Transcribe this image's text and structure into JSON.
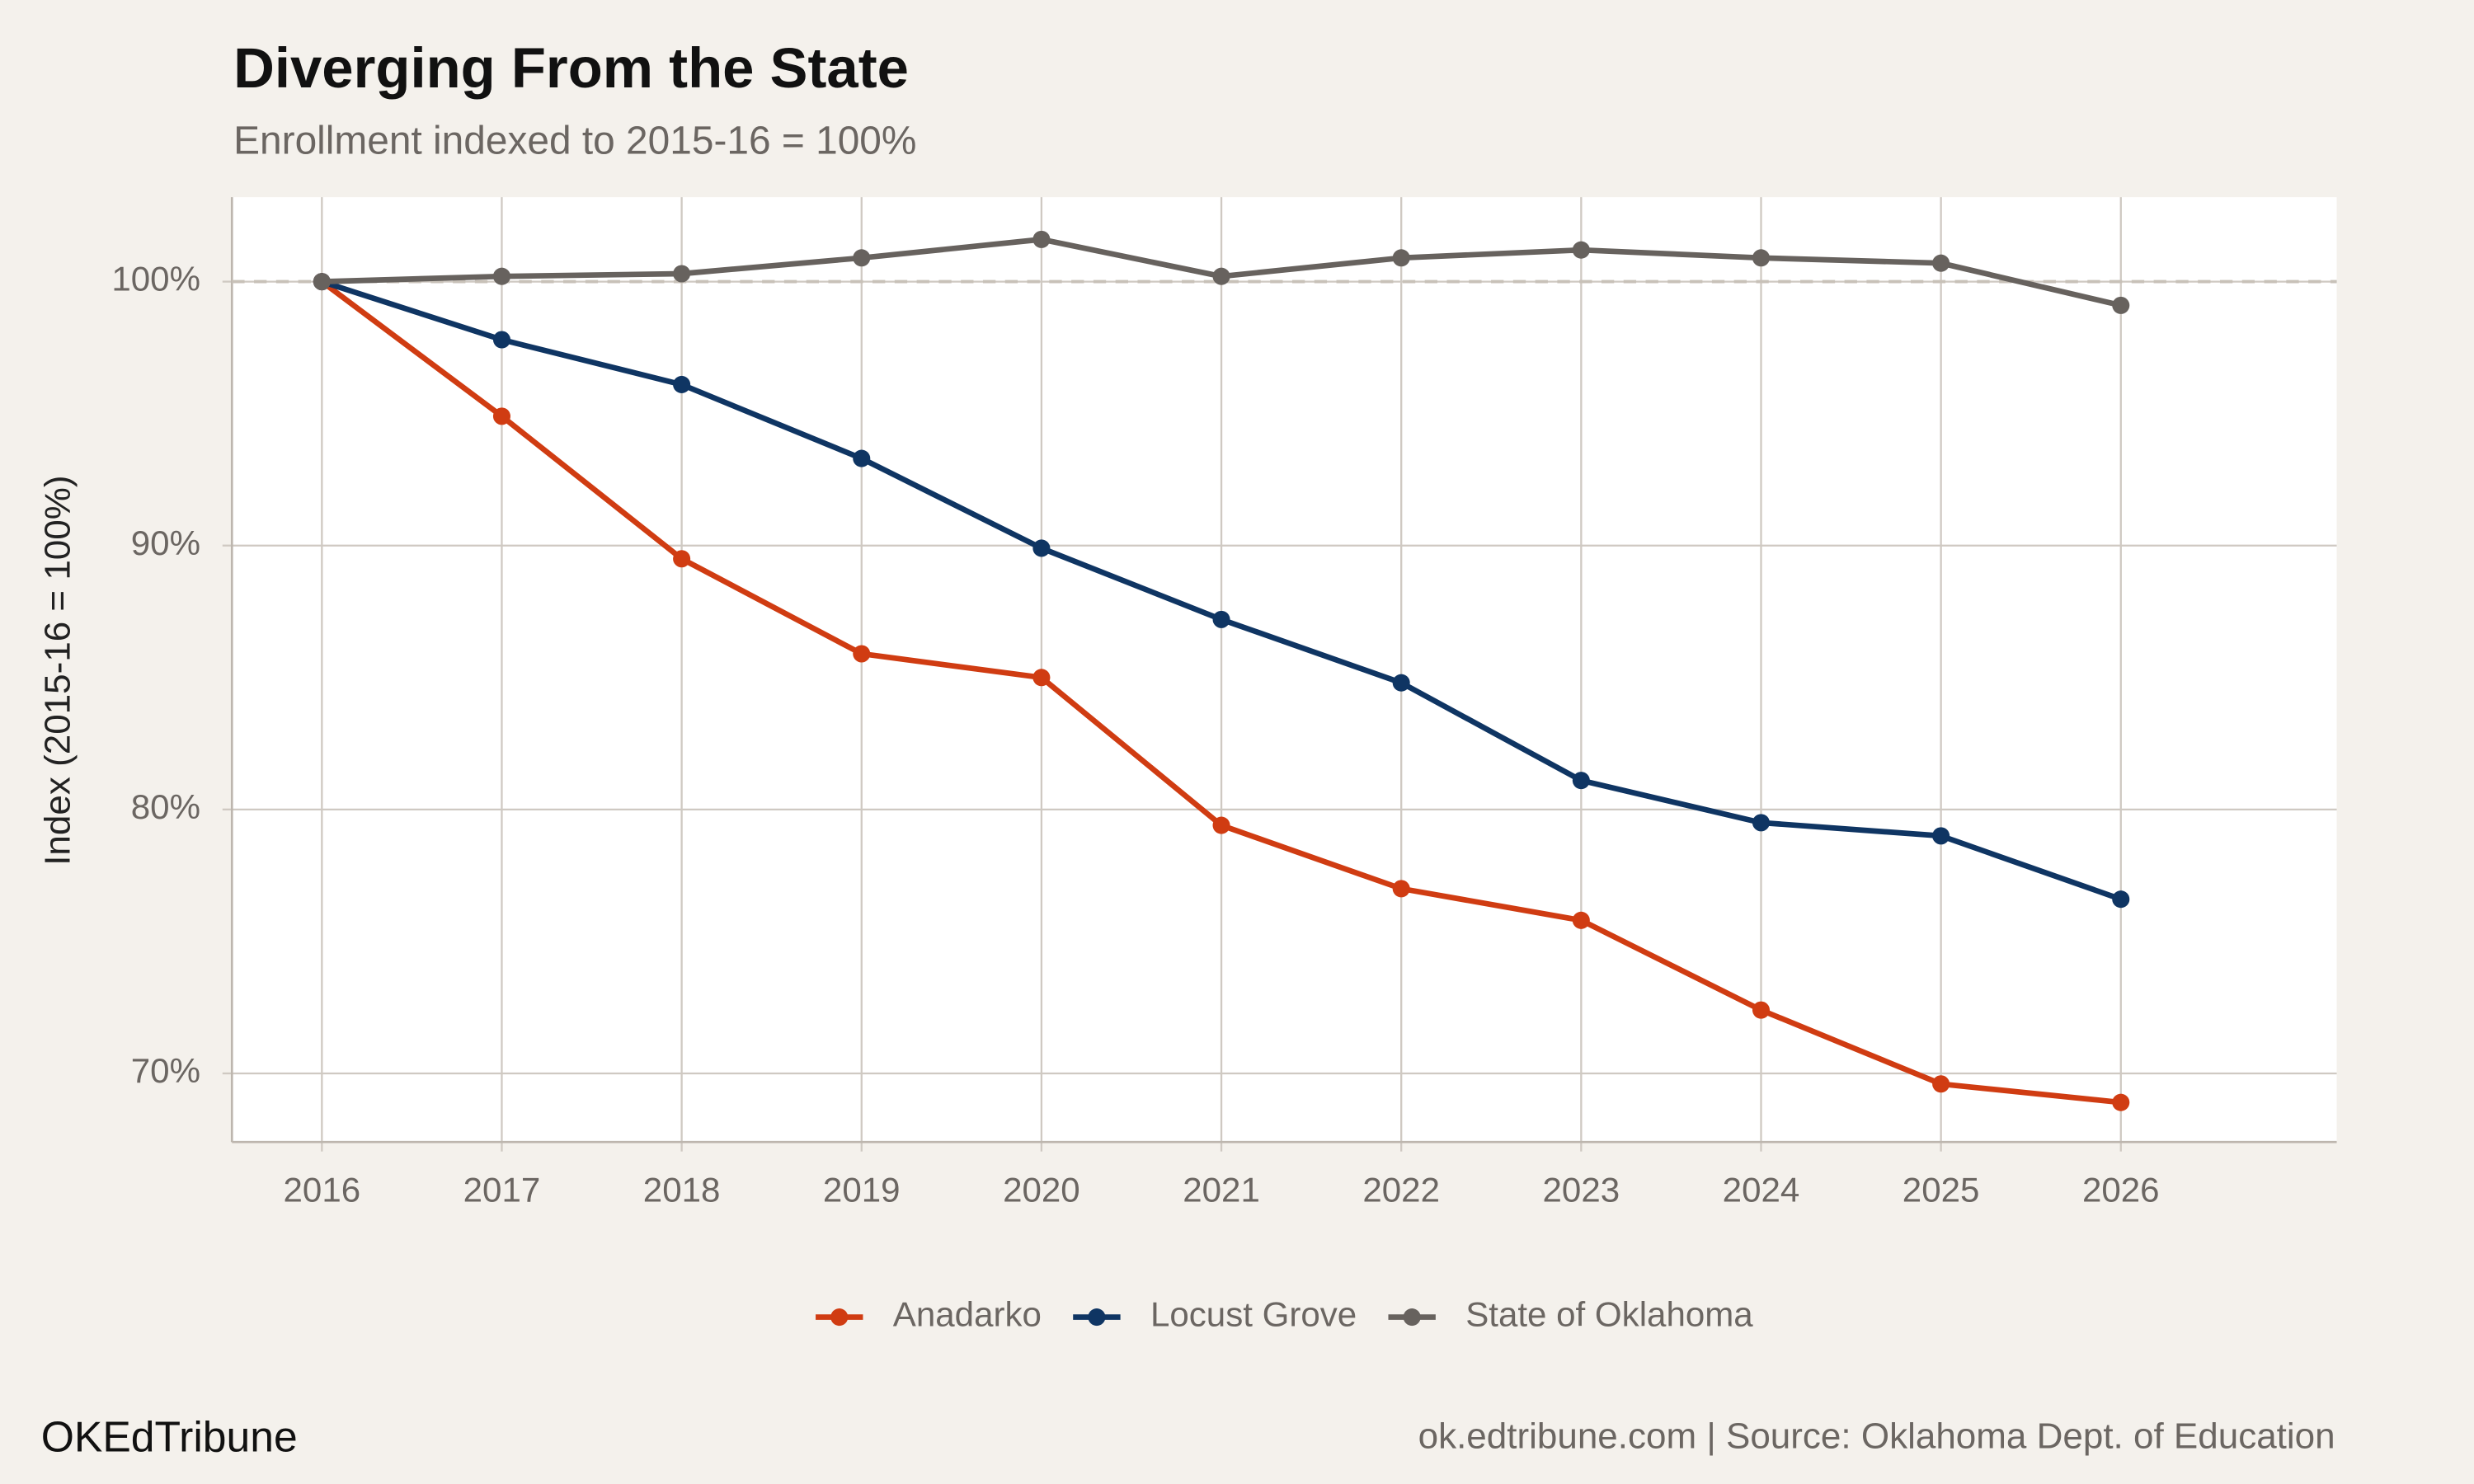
{
  "chart_data": {
    "type": "line",
    "title": "Diverging From the State",
    "subtitle": "Enrollment indexed to 2015-16 = 100%",
    "y_label": "Index (2015-16 = 100%)",
    "x": [
      2016,
      2017,
      2018,
      2019,
      2020,
      2021,
      2022,
      2023,
      2024,
      2025,
      2026
    ],
    "series": [
      {
        "name": "Anadarko",
        "color": "#d03c12",
        "values": [
          100,
          94.9,
          89.5,
          85.9,
          85.0,
          79.4,
          77.0,
          75.8,
          72.4,
          69.6,
          68.9
        ]
      },
      {
        "name": "Locust Grove",
        "color": "#0f3563",
        "values": [
          100,
          97.8,
          96.1,
          93.3,
          89.9,
          87.2,
          84.8,
          81.1,
          79.5,
          79.0,
          76.6
        ]
      },
      {
        "name": "State of Oklahoma",
        "color": "#67625e",
        "values": [
          100,
          100.2,
          100.3,
          100.9,
          101.6,
          100.2,
          100.9,
          101.2,
          100.9,
          100.7,
          99.1
        ]
      }
    ],
    "xlim": [
      2015.5,
      2027.2
    ],
    "xticks": [
      2016,
      2017,
      2018,
      2019,
      2020,
      2021,
      2022,
      2023,
      2024,
      2025,
      2026
    ],
    "ylim": [
      67.4,
      103.2
    ],
    "yticks": [
      {
        "value": 70,
        "label": "70%"
      },
      {
        "value": 80,
        "label": "80%"
      },
      {
        "value": 90,
        "label": "90%"
      },
      {
        "value": 100,
        "label": "100%"
      }
    ],
    "reference_line": 100,
    "grid": true,
    "legend": "bottom",
    "footer_left": "OKEdTribune",
    "footer_right": "ok.edtribune.com | Source: Oklahoma Dept. of Education"
  }
}
